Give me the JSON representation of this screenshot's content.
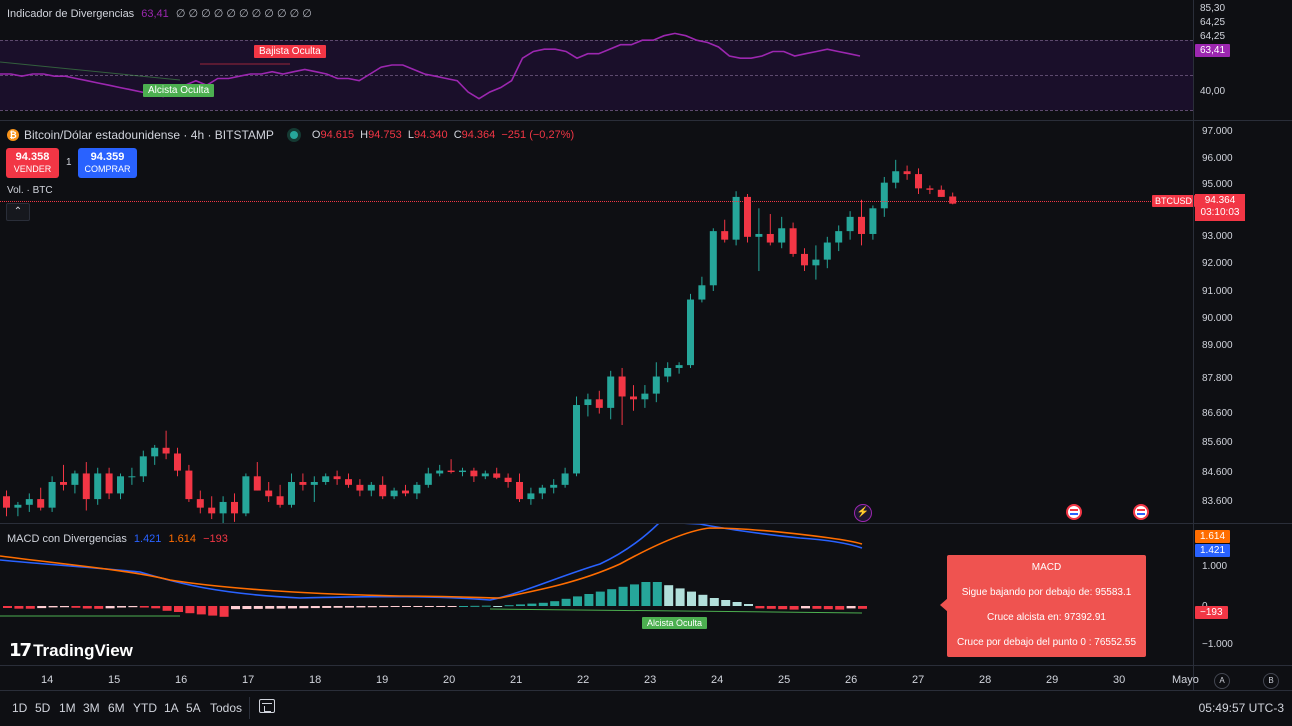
{
  "rsi": {
    "title": "Indicador de Divergencias",
    "value": "63,41",
    "placeholders": "∅ ∅ ∅ ∅ ∅ ∅ ∅ ∅ ∅ ∅ ∅",
    "axis": [
      "85,30",
      "64,25",
      "64,25",
      "40,00"
    ],
    "current": "63,41",
    "label_bear": "Bajista Oculta",
    "label_bull": "Alcista Oculta",
    "line_color": "#9c27b0",
    "values": [
      56,
      56,
      55,
      56,
      56,
      55,
      55,
      54,
      53,
      52,
      51,
      50,
      49,
      48,
      47,
      46,
      49,
      51,
      53,
      51,
      54,
      54,
      55,
      56,
      56,
      57,
      56,
      57,
      58,
      57,
      56,
      54,
      54,
      53,
      56,
      59,
      60,
      60,
      58,
      56,
      55,
      54,
      53,
      48,
      45,
      48,
      50,
      53,
      63,
      66,
      67,
      67,
      66,
      63,
      65,
      65,
      67,
      69,
      69,
      71,
      71,
      73,
      74,
      73,
      71,
      70,
      68,
      64,
      63,
      63,
      64,
      66,
      66,
      64,
      65,
      66,
      67,
      66,
      65,
      64
    ]
  },
  "main": {
    "symbol_title": "Bitcoin/Dólar estadounidense · 4h · BITSTAMP",
    "ohlc": {
      "o_label": "O",
      "o": "94.615",
      "h_label": "H",
      "h": "94.753",
      "l_label": "L",
      "l": "94.340",
      "c_label": "C",
      "c": "94.364",
      "chg": "−251 (−0,27%)"
    },
    "sell_price": "94.358",
    "sell_label": "VENDER",
    "spread": "1",
    "buy_price": "94.359",
    "buy_label": "COMPRAR",
    "vol_label": "Vol. · BTC",
    "price_axis": [
      "97.000",
      "96.000",
      "95.000",
      "94.000",
      "93.000",
      "92.000",
      "91.000",
      "90.000",
      "89.000",
      "87.800",
      "86.600",
      "85.600",
      "84.600",
      "83.600"
    ],
    "symbol_tag": "BTCUSD",
    "last_price": "94.364",
    "countdown": "03:10:03",
    "up_color": "#26a69a",
    "down_color": "#f23645"
  },
  "chart_data": {
    "type": "candlestick",
    "x_start": "13",
    "candles": [
      {
        "o": 84.1,
        "h": 84.3,
        "l": 83.4,
        "c": 83.7
      },
      {
        "o": 83.7,
        "h": 83.9,
        "l": 83.4,
        "c": 83.8
      },
      {
        "o": 83.8,
        "h": 84.2,
        "l": 83.55,
        "c": 84.0
      },
      {
        "o": 84.0,
        "h": 84.4,
        "l": 83.6,
        "c": 83.7
      },
      {
        "o": 83.7,
        "h": 84.8,
        "l": 83.55,
        "c": 84.6
      },
      {
        "o": 84.6,
        "h": 85.2,
        "l": 84.3,
        "c": 84.5
      },
      {
        "o": 84.5,
        "h": 85.0,
        "l": 84.2,
        "c": 84.9
      },
      {
        "o": 84.9,
        "h": 85.3,
        "l": 83.6,
        "c": 84.0
      },
      {
        "o": 84.0,
        "h": 85.1,
        "l": 83.8,
        "c": 84.9
      },
      {
        "o": 84.9,
        "h": 85.1,
        "l": 84.0,
        "c": 84.2
      },
      {
        "o": 84.2,
        "h": 84.9,
        "l": 84.0,
        "c": 84.8
      },
      {
        "o": 84.8,
        "h": 85.1,
        "l": 84.5,
        "c": 84.8
      },
      {
        "o": 84.8,
        "h": 85.7,
        "l": 84.6,
        "c": 85.5
      },
      {
        "o": 85.5,
        "h": 85.9,
        "l": 85.2,
        "c": 85.8
      },
      {
        "o": 85.8,
        "h": 86.4,
        "l": 85.4,
        "c": 85.6
      },
      {
        "o": 85.6,
        "h": 85.8,
        "l": 84.8,
        "c": 85.0
      },
      {
        "o": 85.0,
        "h": 85.2,
        "l": 83.9,
        "c": 84.0
      },
      {
        "o": 84.0,
        "h": 84.3,
        "l": 83.5,
        "c": 83.7
      },
      {
        "o": 83.7,
        "h": 84.1,
        "l": 83.3,
        "c": 83.5
      },
      {
        "o": 83.5,
        "h": 84.1,
        "l": 83.0,
        "c": 83.9
      },
      {
        "o": 83.9,
        "h": 84.2,
        "l": 83.2,
        "c": 83.5
      },
      {
        "o": 83.5,
        "h": 84.9,
        "l": 83.4,
        "c": 84.8
      },
      {
        "o": 84.8,
        "h": 85.3,
        "l": 84.3,
        "c": 84.3
      },
      {
        "o": 84.3,
        "h": 84.6,
        "l": 83.9,
        "c": 84.1
      },
      {
        "o": 84.1,
        "h": 84.5,
        "l": 83.7,
        "c": 83.8
      },
      {
        "o": 83.8,
        "h": 84.9,
        "l": 83.7,
        "c": 84.6
      },
      {
        "o": 84.6,
        "h": 84.9,
        "l": 84.3,
        "c": 84.5
      },
      {
        "o": 84.5,
        "h": 84.8,
        "l": 83.9,
        "c": 84.6
      },
      {
        "o": 84.6,
        "h": 84.9,
        "l": 84.5,
        "c": 84.8
      },
      {
        "o": 84.8,
        "h": 85.0,
        "l": 84.5,
        "c": 84.7
      },
      {
        "o": 84.7,
        "h": 84.9,
        "l": 84.4,
        "c": 84.5
      },
      {
        "o": 84.5,
        "h": 84.7,
        "l": 84.1,
        "c": 84.3
      },
      {
        "o": 84.3,
        "h": 84.6,
        "l": 84.1,
        "c": 84.5
      },
      {
        "o": 84.5,
        "h": 84.8,
        "l": 84.0,
        "c": 84.1
      },
      {
        "o": 84.1,
        "h": 84.4,
        "l": 84.0,
        "c": 84.3
      },
      {
        "o": 84.3,
        "h": 84.5,
        "l": 84.1,
        "c": 84.2
      },
      {
        "o": 84.2,
        "h": 84.6,
        "l": 84.0,
        "c": 84.5
      },
      {
        "o": 84.5,
        "h": 85.1,
        "l": 84.4,
        "c": 84.9
      },
      {
        "o": 84.9,
        "h": 85.2,
        "l": 84.8,
        "c": 85.0
      },
      {
        "o": 85.0,
        "h": 85.4,
        "l": 84.9,
        "c": 84.95
      },
      {
        "o": 84.95,
        "h": 85.1,
        "l": 84.8,
        "c": 85.0
      },
      {
        "o": 85.0,
        "h": 85.1,
        "l": 84.6,
        "c": 84.8
      },
      {
        "o": 84.8,
        "h": 85.0,
        "l": 84.7,
        "c": 84.9
      },
      {
        "o": 84.9,
        "h": 85.1,
        "l": 84.7,
        "c": 84.75
      },
      {
        "o": 84.75,
        "h": 84.9,
        "l": 84.4,
        "c": 84.6
      },
      {
        "o": 84.6,
        "h": 84.9,
        "l": 83.9,
        "c": 84.0
      },
      {
        "o": 84.0,
        "h": 84.4,
        "l": 83.8,
        "c": 84.2
      },
      {
        "o": 84.2,
        "h": 84.5,
        "l": 84.0,
        "c": 84.4
      },
      {
        "o": 84.4,
        "h": 84.7,
        "l": 84.2,
        "c": 84.5
      },
      {
        "o": 84.5,
        "h": 85.1,
        "l": 84.4,
        "c": 84.9
      },
      {
        "o": 84.9,
        "h": 87.6,
        "l": 84.8,
        "c": 87.3
      },
      {
        "o": 87.3,
        "h": 87.7,
        "l": 86.9,
        "c": 87.5
      },
      {
        "o": 87.5,
        "h": 87.8,
        "l": 87.0,
        "c": 87.2
      },
      {
        "o": 87.2,
        "h": 88.5,
        "l": 86.8,
        "c": 88.3
      },
      {
        "o": 88.3,
        "h": 88.6,
        "l": 86.6,
        "c": 87.6
      },
      {
        "o": 87.6,
        "h": 88.0,
        "l": 87.1,
        "c": 87.5
      },
      {
        "o": 87.5,
        "h": 88.0,
        "l": 87.2,
        "c": 87.7
      },
      {
        "o": 87.7,
        "h": 88.8,
        "l": 87.4,
        "c": 88.3
      },
      {
        "o": 88.3,
        "h": 88.8,
        "l": 88.1,
        "c": 88.6
      },
      {
        "o": 88.6,
        "h": 88.8,
        "l": 88.4,
        "c": 88.7
      },
      {
        "o": 88.7,
        "h": 91.2,
        "l": 88.6,
        "c": 91.0
      },
      {
        "o": 91.0,
        "h": 91.8,
        "l": 90.9,
        "c": 91.5
      },
      {
        "o": 91.5,
        "h": 93.5,
        "l": 91.3,
        "c": 93.4
      },
      {
        "o": 93.4,
        "h": 93.8,
        "l": 93.0,
        "c": 93.1
      },
      {
        "o": 93.1,
        "h": 94.8,
        "l": 92.9,
        "c": 94.6
      },
      {
        "o": 94.6,
        "h": 94.7,
        "l": 93.0,
        "c": 93.2
      },
      {
        "o": 93.2,
        "h": 94.2,
        "l": 92.0,
        "c": 93.3
      },
      {
        "o": 93.3,
        "h": 94.0,
        "l": 92.9,
        "c": 93.0
      },
      {
        "o": 93.0,
        "h": 93.9,
        "l": 92.8,
        "c": 93.5
      },
      {
        "o": 93.5,
        "h": 93.7,
        "l": 92.5,
        "c": 92.6
      },
      {
        "o": 92.6,
        "h": 92.8,
        "l": 92.0,
        "c": 92.2
      },
      {
        "o": 92.2,
        "h": 92.9,
        "l": 91.7,
        "c": 92.4
      },
      {
        "o": 92.4,
        "h": 93.2,
        "l": 92.1,
        "c": 93.0
      },
      {
        "o": 93.0,
        "h": 93.6,
        "l": 92.7,
        "c": 93.4
      },
      {
        "o": 93.4,
        "h": 94.1,
        "l": 93.1,
        "c": 93.9
      },
      {
        "o": 93.9,
        "h": 94.5,
        "l": 92.9,
        "c": 93.3
      },
      {
        "o": 93.3,
        "h": 94.3,
        "l": 93.1,
        "c": 94.2
      },
      {
        "o": 94.2,
        "h": 95.3,
        "l": 93.9,
        "c": 95.1
      },
      {
        "o": 95.1,
        "h": 95.9,
        "l": 94.9,
        "c": 95.5
      },
      {
        "o": 95.5,
        "h": 95.7,
        "l": 95.2,
        "c": 95.4
      },
      {
        "o": 95.4,
        "h": 95.6,
        "l": 94.7,
        "c": 94.9
      },
      {
        "o": 94.9,
        "h": 95.0,
        "l": 94.7,
        "c": 94.85
      },
      {
        "o": 94.85,
        "h": 95.0,
        "l": 94.6,
        "c": 94.6
      },
      {
        "o": 94.615,
        "h": 94.753,
        "l": 94.34,
        "c": 94.364
      }
    ]
  },
  "macd": {
    "title": "MACD con Divergencias",
    "v1": "1.421",
    "v2": "1.614",
    "v3": "−193",
    "axis": [
      "1.000",
      "0",
      "−1.000"
    ],
    "tag_signal": "1.614",
    "tag_macd": "1.421",
    "tag_hist": "−193",
    "label_bull": "Alcista Oculta",
    "macd_color": "#2962ff",
    "signal_color": "#ff6d00"
  },
  "tooltip": {
    "title": "MACD",
    "line1": "Sigue bajando por debajo de: 95583.1",
    "line2": "Cruce alcista en: 97392.91",
    "line3": "Cruce por debajo del punto 0 : 76552.55"
  },
  "logo": "TradingView",
  "date_axis": [
    "14",
    "15",
    "16",
    "17",
    "18",
    "19",
    "20",
    "21",
    "22",
    "23",
    "24",
    "25",
    "26",
    "27",
    "28",
    "29",
    "30",
    "Mayo"
  ],
  "ranges": [
    "1D",
    "5D",
    "1M",
    "3M",
    "6M",
    "YTD",
    "1A",
    "5A",
    "Todos"
  ],
  "clock": "05:49:57 UTC-3",
  "corner_a": "A",
  "corner_b": "B"
}
